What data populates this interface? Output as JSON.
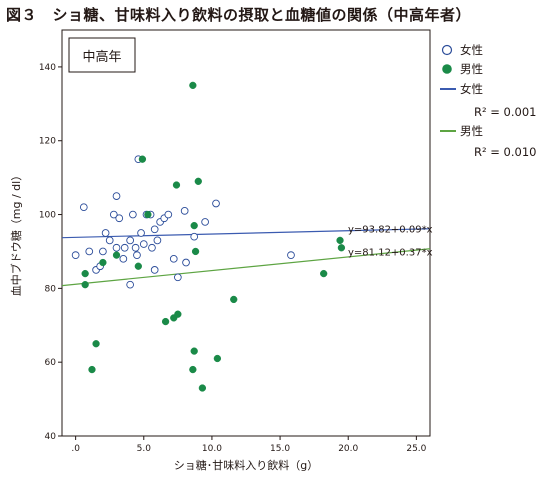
{
  "figure_title": "図３　ショ糖、甘味料入り飲料の摂取と血糖値の関係（中高年者）",
  "chart_data": {
    "type": "scatter",
    "group_label": "中高年",
    "xlabel": "ショ糖･甘味料入り飲料（g）",
    "ylabel": "血中ブドウ糖（mg / dl）",
    "xlim": [
      -1.0,
      26.0
    ],
    "ylim": [
      40,
      150
    ],
    "x_ticks": [
      0,
      5,
      10,
      15,
      20,
      25
    ],
    "x_tick_labels": [
      ".0",
      "5.0",
      "10.0",
      "15.0",
      "20.0",
      "25.0"
    ],
    "y_ticks": [
      40,
      60,
      80,
      100,
      120,
      140
    ],
    "y_tick_labels": [
      "40",
      "60",
      "80",
      "100",
      "120",
      "140"
    ],
    "grid": false,
    "legend_position": "right-top",
    "series": [
      {
        "name": "女性",
        "marker": "open-circle",
        "color": "#2c4d9a",
        "points": [
          [
            0,
            89
          ],
          [
            0.6,
            102
          ],
          [
            1.0,
            90
          ],
          [
            1.5,
            85
          ],
          [
            1.8,
            86
          ],
          [
            2.0,
            90
          ],
          [
            2.2,
            95
          ],
          [
            2.5,
            93
          ],
          [
            2.8,
            100
          ],
          [
            3.0,
            105
          ],
          [
            3.0,
            91
          ],
          [
            3.2,
            99
          ],
          [
            3.5,
            88
          ],
          [
            3.6,
            91
          ],
          [
            4.0,
            93
          ],
          [
            4.0,
            81
          ],
          [
            4.2,
            100
          ],
          [
            4.4,
            91
          ],
          [
            4.5,
            89
          ],
          [
            4.6,
            115
          ],
          [
            4.8,
            95
          ],
          [
            5.0,
            92
          ],
          [
            5.2,
            100
          ],
          [
            5.5,
            100
          ],
          [
            5.6,
            91
          ],
          [
            5.8,
            85
          ],
          [
            5.8,
            96
          ],
          [
            6.0,
            93
          ],
          [
            6.2,
            98
          ],
          [
            6.5,
            99
          ],
          [
            6.8,
            100
          ],
          [
            7.2,
            88
          ],
          [
            7.5,
            83
          ],
          [
            8.0,
            101
          ],
          [
            8.1,
            87
          ],
          [
            8.7,
            94
          ],
          [
            9.5,
            98
          ],
          [
            10.3,
            103
          ],
          [
            15.8,
            89
          ]
        ]
      },
      {
        "name": "男性",
        "marker": "filled-circle",
        "color": "#1a8a48",
        "points": [
          [
            0.7,
            84
          ],
          [
            0.7,
            81
          ],
          [
            1.2,
            58
          ],
          [
            1.5,
            65
          ],
          [
            2.0,
            87
          ],
          [
            3.0,
            89
          ],
          [
            4.6,
            86
          ],
          [
            4.9,
            115
          ],
          [
            5.3,
            100
          ],
          [
            6.6,
            71
          ],
          [
            7.2,
            72
          ],
          [
            7.4,
            108
          ],
          [
            7.5,
            73
          ],
          [
            8.6,
            135
          ],
          [
            8.6,
            58
          ],
          [
            8.7,
            97
          ],
          [
            8.7,
            63
          ],
          [
            8.8,
            90
          ],
          [
            9.0,
            109
          ],
          [
            9.3,
            53
          ],
          [
            10.4,
            61
          ],
          [
            11.6,
            77
          ],
          [
            18.2,
            84
          ],
          [
            19.4,
            93
          ],
          [
            19.5,
            91
          ]
        ]
      }
    ],
    "fit_lines": [
      {
        "name": "女性",
        "r2": "R² = 0.001",
        "equation": "y=93.82+0.09*x",
        "intercept": 93.82,
        "slope": 0.09,
        "color": "#3b5bb0"
      },
      {
        "name": "男性",
        "r2": "R² = 0.010",
        "equation": "y=81.12+0.37*x",
        "intercept": 81.12,
        "slope": 0.37,
        "color": "#5da442"
      }
    ]
  }
}
